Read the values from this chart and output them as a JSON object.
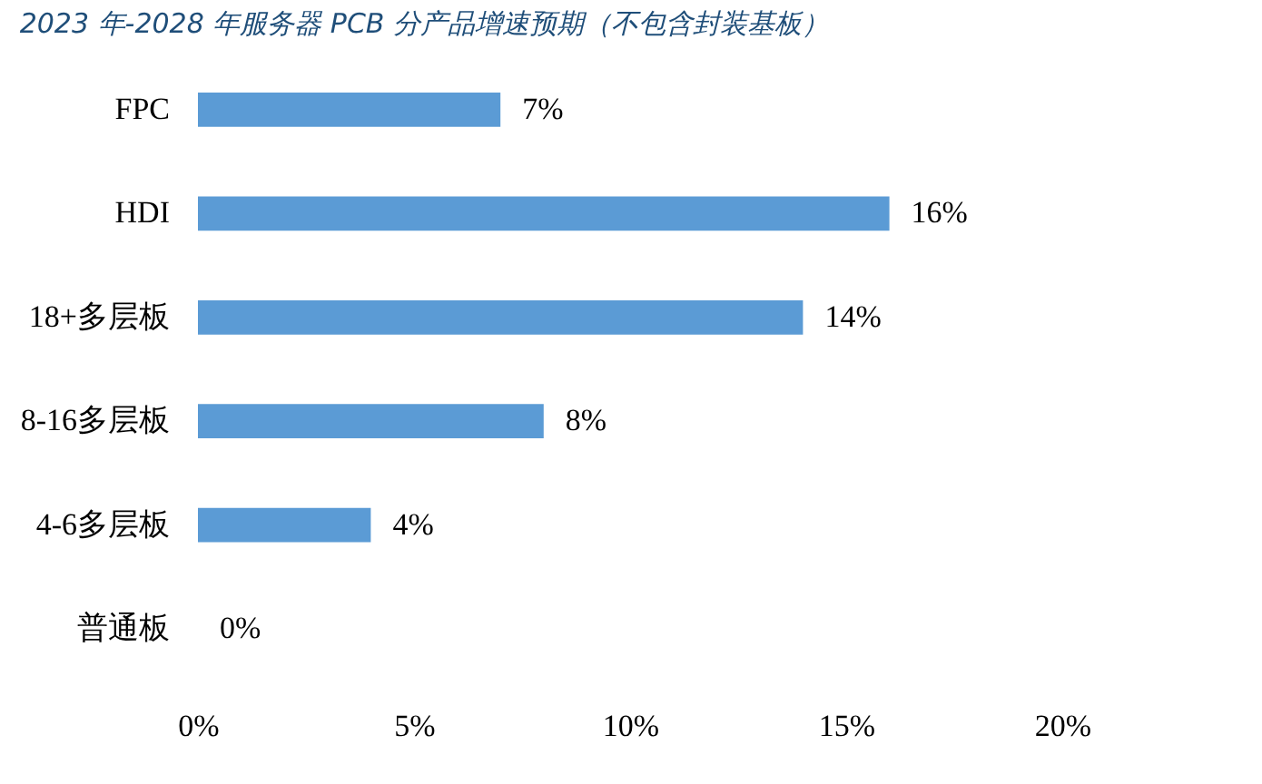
{
  "chart_data": {
    "type": "bar",
    "orientation": "horizontal",
    "title": "2023 年-2028 年服务器 PCB 分产品增速预期（不包含封装基板）",
    "categories": [
      "FPC",
      "HDI",
      "18+多层板",
      "8-16多层板",
      "4-6多层板",
      "普通板"
    ],
    "values": [
      7,
      16,
      14,
      8,
      4,
      0
    ],
    "value_labels": [
      "7%",
      "16%",
      "14%",
      "8%",
      "4%",
      "0%"
    ],
    "color": "#5b9bd5",
    "xlim": [
      0,
      20
    ],
    "xticks": [
      {
        "value": 0,
        "label": "0%"
      },
      {
        "value": 5,
        "label": "5%"
      },
      {
        "value": 10,
        "label": "10%"
      },
      {
        "value": 15,
        "label": "15%"
      },
      {
        "value": 20,
        "label": "20%"
      }
    ],
    "grid": false
  }
}
